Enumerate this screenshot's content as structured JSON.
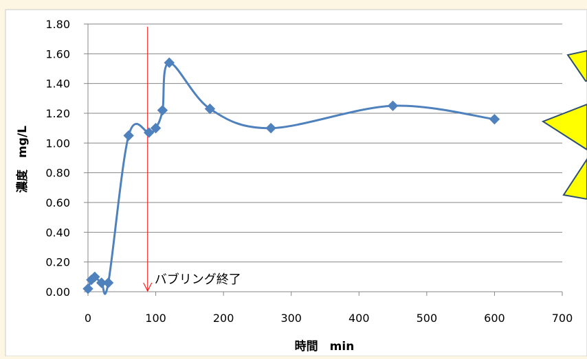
{
  "chart_data": {
    "type": "line",
    "title": "",
    "xlabel": "時間　min",
    "ylabel": "濃度　mg/L",
    "xlim": [
      0,
      700
    ],
    "ylim": [
      0,
      1.8
    ],
    "x_ticks": [
      0,
      100,
      200,
      300,
      400,
      500,
      600,
      700
    ],
    "y_ticks": [
      "0.00",
      "0.20",
      "0.40",
      "0.60",
      "0.80",
      "1.00",
      "1.20",
      "1.40",
      "1.60",
      "1.80"
    ],
    "grid": "horizontal",
    "smooth": true,
    "series": [
      {
        "name": "",
        "color": "#4f81bd",
        "marker": "diamond",
        "points": [
          {
            "x": 0,
            "y": 0.02
          },
          {
            "x": 5,
            "y": 0.08
          },
          {
            "x": 10,
            "y": 0.1
          },
          {
            "x": 20,
            "y": 0.06
          },
          {
            "x": 30,
            "y": 0.06
          },
          {
            "x": 60,
            "y": 1.05
          },
          {
            "x": 90,
            "y": 1.07
          },
          {
            "x": 100,
            "y": 1.1
          },
          {
            "x": 110,
            "y": 1.22
          },
          {
            "x": 120,
            "y": 1.54
          },
          {
            "x": 180,
            "y": 1.23
          },
          {
            "x": 270,
            "y": 1.1
          },
          {
            "x": 450,
            "y": 1.25
          },
          {
            "x": 600,
            "y": 1.16
          }
        ]
      }
    ],
    "annotations": [
      {
        "text": "バブリング終了",
        "x": 88,
        "color": "#ff0000"
      }
    ]
  },
  "colors": {
    "background": "#fdf6e3",
    "plot_background": "#ffffff",
    "callout_fill": "#ffff00",
    "callout_stroke": "#2f4f6f",
    "grid": "#868686"
  }
}
